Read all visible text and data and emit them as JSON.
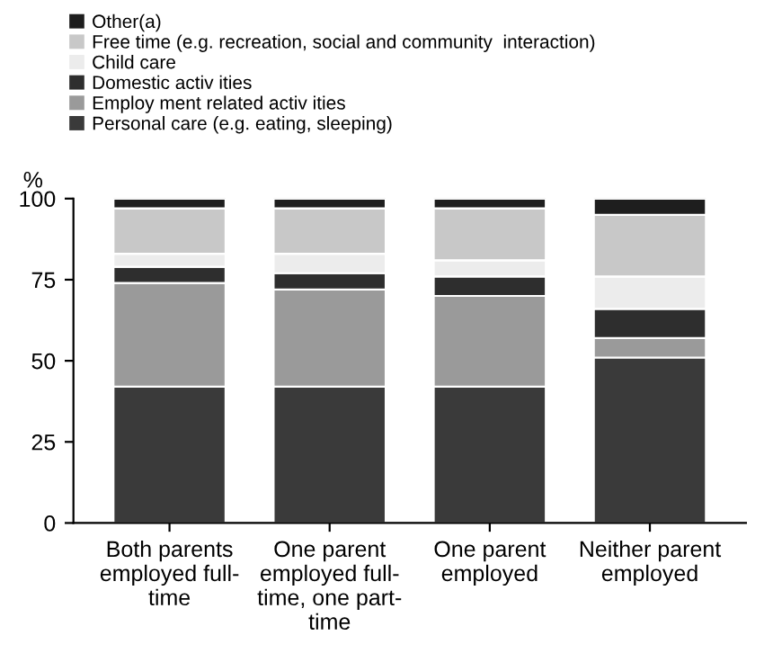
{
  "chart_data": {
    "type": "bar",
    "stacked": true,
    "ylabel": "%",
    "categories": [
      "Both parents employed full-time",
      "One parent employed full-time, one part-time",
      "One parent employed",
      "Neither parent employed"
    ],
    "series": [
      {
        "name": "Personal care (e.g. eating, sleeping)",
        "color": "#3a3a3a",
        "values": [
          42,
          42,
          42,
          51
        ]
      },
      {
        "name": "Employ ment related activ ities",
        "color": "#9a9a9a",
        "values": [
          32,
          30,
          28,
          6
        ]
      },
      {
        "name": "Domestic activ ities",
        "color": "#2e2e2e",
        "values": [
          5,
          5,
          6,
          9
        ]
      },
      {
        "name": "Child care",
        "color": "#ececec",
        "values": [
          4,
          6,
          5,
          10
        ]
      },
      {
        "name": "Free time (e.g. recreation, social and community  interaction)",
        "color": "#c8c8c8",
        "values": [
          14,
          14,
          16,
          19
        ]
      },
      {
        "name": "Other(a)",
        "color": "#1e1e1e",
        "values": [
          3,
          3,
          3,
          5
        ]
      }
    ],
    "ylim": [
      0,
      100
    ],
    "yticks": [
      0,
      25,
      50,
      75,
      100
    ],
    "grid": false,
    "legend": "top left"
  }
}
